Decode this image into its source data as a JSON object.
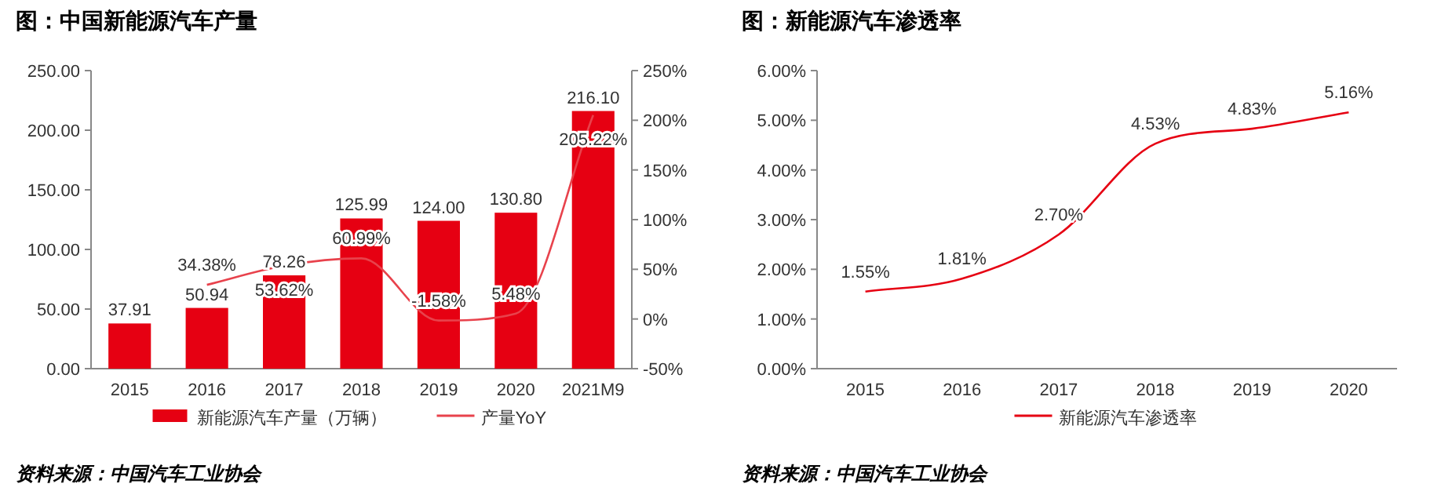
{
  "chart_data": [
    {
      "type": "bar",
      "title": "图：中国新能源汽车产量",
      "categories": [
        "2015",
        "2016",
        "2017",
        "2018",
        "2019",
        "2020",
        "2021M9"
      ],
      "series": [
        {
          "name": "新能源汽车产量（万辆）",
          "type": "bar",
          "color": "#e60012",
          "values": [
            37.91,
            50.94,
            78.26,
            125.99,
            124.0,
            130.8,
            216.1
          ],
          "value_labels": [
            "37.91",
            "50.94",
            "78.26",
            "125.99",
            "124.00",
            "130.80",
            "216.10"
          ]
        },
        {
          "name": "产量YoY",
          "type": "line",
          "axis": "y2",
          "color": "#e8424c",
          "values": [
            null,
            34.38,
            53.62,
            60.99,
            -1.58,
            5.48,
            205.22
          ],
          "value_labels": [
            null,
            "34.38%",
            "53.62%",
            "60.99%",
            "-1.58%",
            "5.48%",
            "205.22%"
          ]
        }
      ],
      "ylim": [
        0,
        250
      ],
      "yticks": [
        {
          "value": 0,
          "label": "0.00"
        },
        {
          "value": 50,
          "label": "50.00"
        },
        {
          "value": 100,
          "label": "100.00"
        },
        {
          "value": 150,
          "label": "150.00"
        },
        {
          "value": 200,
          "label": "200.00"
        },
        {
          "value": 250,
          "label": "250.00"
        }
      ],
      "y2lim": [
        -50,
        250
      ],
      "y2ticks": [
        {
          "value": -50,
          "label": "-50%"
        },
        {
          "value": 0,
          "label": "0%"
        },
        {
          "value": 50,
          "label": "50%"
        },
        {
          "value": 100,
          "label": "100%"
        },
        {
          "value": 150,
          "label": "150%"
        },
        {
          "value": 200,
          "label": "200%"
        },
        {
          "value": 250,
          "label": "250%"
        }
      ],
      "legend": "bottom",
      "annotations": [
        "资料来源：中国汽车工业协会"
      ]
    },
    {
      "type": "line",
      "title": "图：新能源汽车渗透率",
      "categories": [
        "2015",
        "2016",
        "2017",
        "2018",
        "2019",
        "2020"
      ],
      "series": [
        {
          "name": "新能源汽车渗透率",
          "color": "#e60012",
          "values": [
            1.55,
            1.81,
            2.7,
            4.53,
            4.83,
            5.16
          ],
          "value_labels": [
            "1.55%",
            "1.81%",
            "2.70%",
            "4.53%",
            "4.83%",
            "5.16%"
          ]
        }
      ],
      "ylim": [
        0,
        6
      ],
      "yticks": [
        {
          "value": 0,
          "label": "0.00%"
        },
        {
          "value": 1,
          "label": "1.00%"
        },
        {
          "value": 2,
          "label": "2.00%"
        },
        {
          "value": 3,
          "label": "3.00%"
        },
        {
          "value": 4,
          "label": "4.00%"
        },
        {
          "value": 5,
          "label": "5.00%"
        },
        {
          "value": 6,
          "label": "6.00%"
        }
      ],
      "legend": "bottom",
      "annotations": [
        "资料来源：中国汽车工业协会"
      ]
    }
  ]
}
